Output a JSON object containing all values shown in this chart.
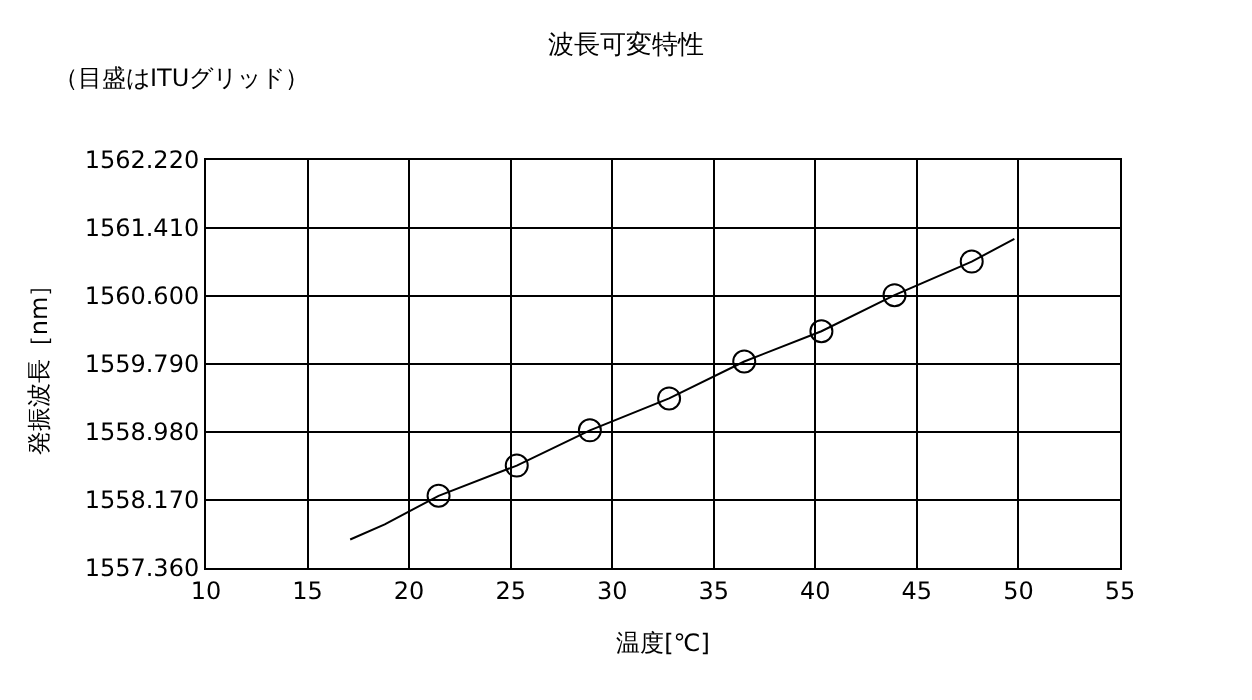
{
  "chart_data": {
    "type": "line",
    "title": "波長可変特性",
    "subtitle": "（目盛はITUグリッド）",
    "xlabel": "温度[℃]",
    "ylabel": "発振波長［nm］",
    "series": [
      {
        "color": "#000000",
        "marker": "none",
        "x": [
          17.1,
          18.8,
          21.45,
          25.3,
          28.9,
          32.8,
          36.5,
          40.3,
          43.9,
          47.7,
          49.8
        ],
        "values": [
          1557.7,
          1557.88,
          1558.22,
          1558.58,
          1559.0,
          1559.38,
          1559.82,
          1560.18,
          1560.61,
          1561.01,
          1561.28
        ]
      },
      {
        "type": "scatter",
        "color": "#000000",
        "marker": "circle",
        "x": [
          21.45,
          25.3,
          28.9,
          32.8,
          36.5,
          40.3,
          43.9,
          47.7
        ],
        "values": [
          1558.22,
          1558.58,
          1559.0,
          1559.38,
          1559.82,
          1560.18,
          1560.61,
          1561.01
        ]
      }
    ],
    "xlim": [
      10,
      55
    ],
    "xticks": [
      10,
      15,
      20,
      25,
      30,
      35,
      40,
      45,
      50,
      55
    ],
    "ylim": [
      1557.36,
      1562.22
    ],
    "yticks": [
      {
        "value": 1557.36,
        "label": "1557.360"
      },
      {
        "value": 1558.17,
        "label": "1558.170"
      },
      {
        "value": 1558.98,
        "label": "1558.980"
      },
      {
        "value": 1559.79,
        "label": "1559.790"
      },
      {
        "value": 1560.6,
        "label": "1560.600"
      },
      {
        "value": 1561.41,
        "label": "1561.410"
      },
      {
        "value": 1562.22,
        "label": "1562.220"
      }
    ],
    "grid": true
  }
}
